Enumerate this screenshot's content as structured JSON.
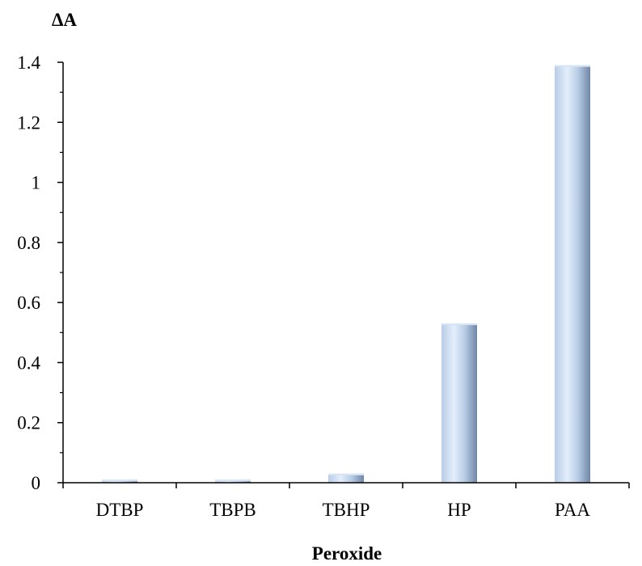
{
  "chart_data": {
    "type": "bar",
    "title": "",
    "xlabel": "Peroxide",
    "ylabel": "ΔA",
    "categories": [
      "DTBP",
      "TBPB",
      "TBHP",
      "HP",
      "PAA"
    ],
    "values": [
      0.01,
      0.01,
      0.03,
      0.53,
      1.39
    ],
    "ylim": [
      0,
      1.4
    ],
    "yticks": [
      0,
      0.2,
      0.4,
      0.6,
      0.8,
      1,
      1.2,
      1.4
    ],
    "ytick_labels": [
      "0",
      "0.2",
      "0.4",
      "0.6",
      "0.8",
      "1",
      "1.2",
      "1.4"
    ],
    "grid": false,
    "legend": "none",
    "bar_colors": {
      "edge_dark": "#6f86a6",
      "light": "#e3eefb",
      "mid": "#b9cde6",
      "top": "#d6e4f5"
    }
  }
}
